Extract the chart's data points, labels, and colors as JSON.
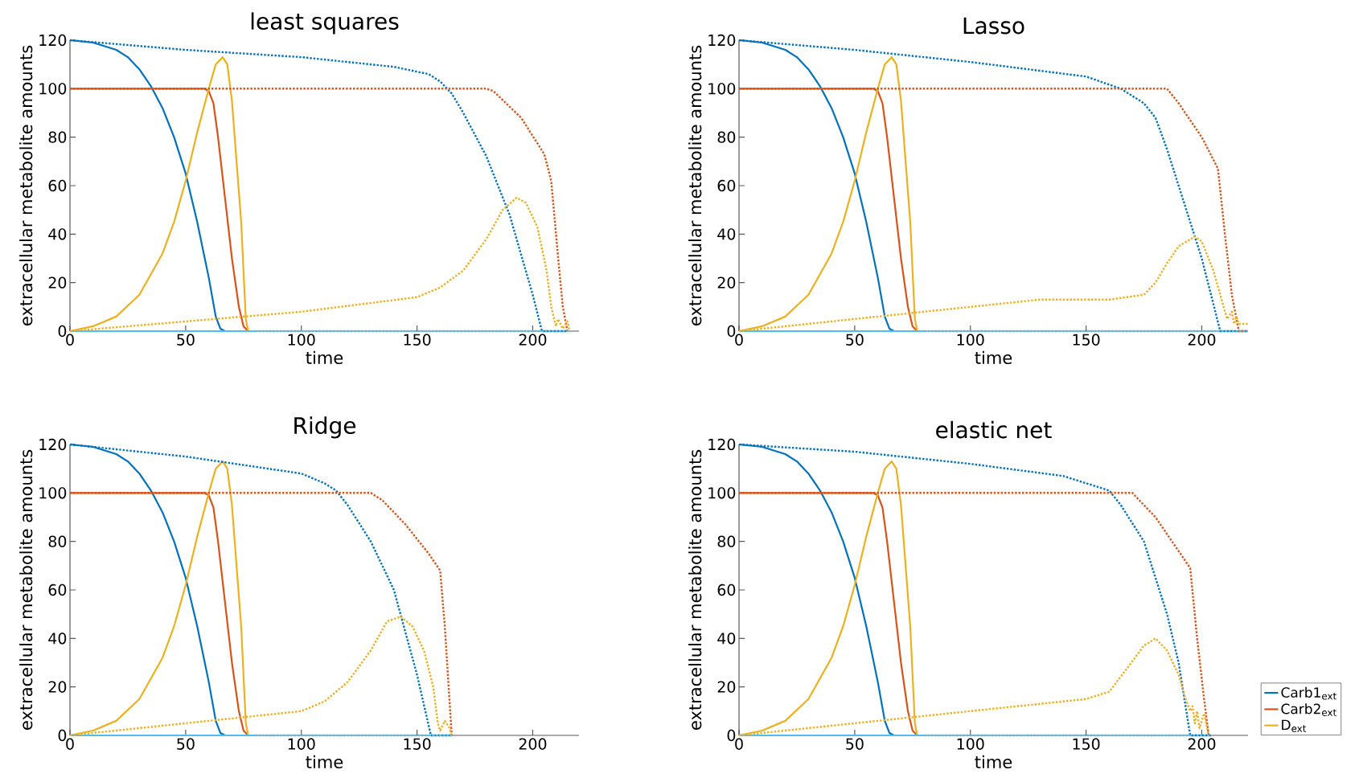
{
  "chart_data": [
    {
      "type": "line",
      "title": "least squares",
      "xlabel": "time",
      "ylabel": "extracellular metabolite amounts",
      "xlim": [
        0,
        220
      ],
      "ylim": [
        0,
        120
      ],
      "xticks": [
        0,
        50,
        100,
        150,
        200
      ],
      "yticks": [
        0,
        20,
        40,
        60,
        80,
        100,
        120
      ],
      "grid": false,
      "legend": false,
      "series": [
        {
          "color": "#0072bd",
          "line_style": "solid",
          "x": [
            0,
            10,
            20,
            25,
            30,
            35,
            40,
            45,
            50,
            55,
            60,
            63,
            65,
            67
          ],
          "values": [
            120,
            119,
            116,
            113,
            108,
            101,
            92,
            80,
            65,
            45,
            22,
            6,
            1,
            0
          ]
        },
        {
          "color": "#d95319",
          "line_style": "solid",
          "x": [
            0,
            58,
            60,
            62,
            64,
            67,
            70,
            73,
            75,
            77
          ],
          "values": [
            100,
            100,
            99,
            94,
            80,
            55,
            30,
            10,
            2,
            0
          ]
        },
        {
          "color": "#edb120",
          "line_style": "solid",
          "x": [
            0,
            10,
            20,
            30,
            40,
            45,
            50,
            55,
            60,
            63,
            66,
            68,
            70,
            72,
            74,
            75,
            76,
            77
          ],
          "values": [
            0,
            2,
            6,
            15,
            32,
            45,
            62,
            82,
            100,
            110,
            113,
            110,
            95,
            70,
            45,
            25,
            5,
            0
          ]
        },
        {
          "color": "#4dbeee",
          "line_style": "solid",
          "x": [
            0,
            80
          ],
          "values": [
            0,
            0
          ]
        },
        {
          "color": "#0072bd",
          "line_style": "dotted",
          "x": [
            0,
            50,
            100,
            140,
            155,
            160,
            165,
            170,
            180,
            190,
            200,
            204,
            215
          ],
          "values": [
            120,
            116,
            113,
            109,
            106,
            103,
            98,
            90,
            72,
            48,
            15,
            0,
            0
          ]
        },
        {
          "color": "#d95319",
          "line_style": "dotted",
          "x": [
            0,
            180,
            183,
            195,
            205,
            208,
            211,
            213,
            215
          ],
          "values": [
            100,
            100,
            99,
            88,
            73,
            62,
            30,
            10,
            0
          ]
        },
        {
          "color": "#edb120",
          "line_style": "dotted",
          "x": [
            0,
            50,
            100,
            150,
            160,
            170,
            180,
            187,
            193,
            197,
            202,
            206,
            208,
            210,
            211,
            213,
            215,
            216
          ],
          "values": [
            0,
            4,
            8,
            14,
            18,
            25,
            38,
            50,
            55,
            53,
            43,
            25,
            10,
            2,
            5,
            1,
            4,
            0
          ]
        },
        {
          "color": "#4dbeee",
          "line_style": "dotted",
          "x": [
            80,
            216
          ],
          "values": [
            0,
            0
          ]
        }
      ]
    },
    {
      "type": "line",
      "title": "Lasso",
      "xlabel": "time",
      "ylabel": "extracellular metabolite amounts",
      "xlim": [
        0,
        220
      ],
      "ylim": [
        0,
        120
      ],
      "xticks": [
        0,
        50,
        100,
        150,
        200
      ],
      "yticks": [
        0,
        20,
        40,
        60,
        80,
        100,
        120
      ],
      "grid": false,
      "legend": false,
      "series": [
        {
          "color": "#0072bd",
          "line_style": "solid",
          "x": [
            0,
            10,
            20,
            25,
            30,
            35,
            40,
            45,
            50,
            55,
            60,
            63,
            65,
            67
          ],
          "values": [
            120,
            119,
            116,
            113,
            108,
            101,
            92,
            80,
            65,
            45,
            22,
            6,
            1,
            0
          ]
        },
        {
          "color": "#d95319",
          "line_style": "solid",
          "x": [
            0,
            58,
            60,
            62,
            64,
            67,
            70,
            73,
            75,
            77
          ],
          "values": [
            100,
            100,
            99,
            94,
            80,
            55,
            30,
            10,
            2,
            0
          ]
        },
        {
          "color": "#edb120",
          "line_style": "solid",
          "x": [
            0,
            10,
            20,
            30,
            40,
            45,
            50,
            55,
            60,
            63,
            66,
            68,
            70,
            72,
            74,
            75,
            76,
            77
          ],
          "values": [
            0,
            2,
            6,
            15,
            32,
            45,
            62,
            82,
            100,
            110,
            113,
            110,
            95,
            70,
            45,
            25,
            5,
            0
          ]
        },
        {
          "color": "#4dbeee",
          "line_style": "solid",
          "x": [
            0,
            80
          ],
          "values": [
            0,
            0
          ]
        },
        {
          "color": "#0072bd",
          "line_style": "dotted",
          "x": [
            0,
            50,
            100,
            150,
            165,
            175,
            180,
            185,
            190,
            200,
            208,
            220
          ],
          "values": [
            120,
            116,
            111,
            105,
            100,
            94,
            88,
            75,
            60,
            30,
            0,
            0
          ]
        },
        {
          "color": "#d95319",
          "line_style": "dotted",
          "x": [
            0,
            185,
            190,
            200,
            207,
            210,
            213,
            216,
            220
          ],
          "values": [
            100,
            100,
            94,
            80,
            67,
            40,
            15,
            0,
            0
          ]
        },
        {
          "color": "#edb120",
          "line_style": "dotted",
          "x": [
            0,
            50,
            100,
            130,
            160,
            175,
            180,
            185,
            190,
            197,
            200,
            205,
            208,
            210,
            211,
            213,
            214,
            215,
            216,
            220
          ],
          "values": [
            0,
            5,
            10,
            13,
            13,
            15,
            20,
            28,
            35,
            39,
            37,
            25,
            15,
            8,
            5,
            8,
            3,
            6,
            3,
            3
          ]
        },
        {
          "color": "#4dbeee",
          "line_style": "dotted",
          "x": [
            80,
            220
          ],
          "values": [
            0,
            0
          ]
        }
      ]
    },
    {
      "type": "line",
      "title": "Ridge",
      "xlabel": "time",
      "ylabel": "extracellular metabolite amounts",
      "xlim": [
        0,
        220
      ],
      "ylim": [
        0,
        120
      ],
      "xticks": [
        0,
        50,
        100,
        150,
        200
      ],
      "yticks": [
        0,
        20,
        40,
        60,
        80,
        100,
        120
      ],
      "grid": false,
      "legend": false,
      "series": [
        {
          "color": "#0072bd",
          "line_style": "solid",
          "x": [
            0,
            10,
            20,
            25,
            30,
            35,
            40,
            45,
            50,
            55,
            60,
            63,
            65,
            67
          ],
          "values": [
            120,
            119,
            116,
            113,
            108,
            101,
            92,
            80,
            65,
            45,
            22,
            6,
            1,
            0
          ]
        },
        {
          "color": "#d95319",
          "line_style": "solid",
          "x": [
            0,
            58,
            60,
            62,
            64,
            67,
            70,
            73,
            75,
            77
          ],
          "values": [
            100,
            100,
            99,
            94,
            80,
            55,
            30,
            10,
            2,
            0
          ]
        },
        {
          "color": "#edb120",
          "line_style": "solid",
          "x": [
            0,
            10,
            20,
            30,
            40,
            45,
            50,
            55,
            60,
            63,
            66,
            68,
            70,
            72,
            74,
            75,
            76,
            77
          ],
          "values": [
            0,
            2,
            6,
            15,
            32,
            45,
            62,
            82,
            100,
            110,
            113,
            110,
            95,
            70,
            45,
            25,
            5,
            0
          ]
        },
        {
          "color": "#4dbeee",
          "line_style": "solid",
          "x": [
            0,
            80
          ],
          "values": [
            0,
            0
          ]
        },
        {
          "color": "#0072bd",
          "line_style": "dotted",
          "x": [
            0,
            50,
            100,
            110,
            115,
            120,
            130,
            140,
            150,
            156,
            165
          ],
          "values": [
            120,
            115,
            108,
            104,
            101,
            95,
            80,
            60,
            25,
            0,
            0
          ]
        },
        {
          "color": "#d95319",
          "line_style": "dotted",
          "x": [
            0,
            130,
            135,
            145,
            155,
            160,
            162,
            164,
            165
          ],
          "values": [
            100,
            100,
            97,
            87,
            75,
            68,
            45,
            15,
            0
          ]
        },
        {
          "color": "#edb120",
          "line_style": "dotted",
          "x": [
            0,
            50,
            100,
            110,
            120,
            130,
            137,
            143,
            148,
            153,
            157,
            159,
            160,
            162,
            164,
            165
          ],
          "values": [
            0,
            5,
            10,
            14,
            22,
            35,
            47,
            49,
            45,
            35,
            20,
            5,
            2,
            6,
            3,
            0
          ]
        },
        {
          "color": "#4dbeee",
          "line_style": "dotted",
          "x": [
            80,
            165
          ],
          "values": [
            0,
            0
          ]
        }
      ]
    },
    {
      "type": "line",
      "title": "elastic net",
      "xlabel": "time",
      "ylabel": "extracellular metabolite amounts",
      "xlim": [
        0,
        220
      ],
      "ylim": [
        0,
        120
      ],
      "xticks": [
        0,
        50,
        100,
        150,
        200
      ],
      "yticks": [
        0,
        20,
        40,
        60,
        80,
        100,
        120
      ],
      "grid": false,
      "legend": "bottom right",
      "series": [
        {
          "name": "Carb1$_{ext}$",
          "color": "#0072bd",
          "line_style": "solid",
          "x": [
            0,
            10,
            20,
            25,
            30,
            35,
            40,
            45,
            50,
            55,
            60,
            63,
            65,
            67
          ],
          "values": [
            120,
            119,
            116,
            113,
            108,
            101,
            92,
            80,
            65,
            45,
            22,
            6,
            1,
            0
          ]
        },
        {
          "name": "Carb2$_{ext}$",
          "color": "#d95319",
          "line_style": "solid",
          "x": [
            0,
            58,
            60,
            62,
            64,
            67,
            70,
            73,
            75,
            77
          ],
          "values": [
            100,
            100,
            99,
            94,
            80,
            55,
            30,
            10,
            2,
            0
          ]
        },
        {
          "name": "D$_{ext}$",
          "color": "#edb120",
          "line_style": "solid",
          "x": [
            0,
            10,
            20,
            30,
            40,
            45,
            50,
            55,
            60,
            63,
            66,
            68,
            70,
            72,
            74,
            75,
            76,
            77
          ],
          "values": [
            0,
            2,
            6,
            15,
            32,
            45,
            62,
            82,
            100,
            110,
            113,
            110,
            95,
            70,
            45,
            25,
            5,
            0
          ]
        },
        {
          "color": "#4dbeee",
          "line_style": "solid",
          "x": [
            0,
            80
          ],
          "values": [
            0,
            0
          ]
        },
        {
          "color": "#0072bd",
          "line_style": "dotted",
          "x": [
            0,
            50,
            100,
            140,
            160,
            165,
            175,
            185,
            190,
            195,
            204
          ],
          "values": [
            120,
            117,
            112,
            107,
            101,
            95,
            80,
            50,
            30,
            0,
            0
          ]
        },
        {
          "color": "#d95319",
          "line_style": "dotted",
          "x": [
            0,
            170,
            180,
            190,
            195,
            198,
            201,
            203
          ],
          "values": [
            100,
            100,
            90,
            76,
            69,
            40,
            15,
            0
          ]
        },
        {
          "color": "#edb120",
          "line_style": "dotted",
          "x": [
            0,
            50,
            100,
            150,
            160,
            168,
            175,
            180,
            185,
            190,
            193,
            195,
            196,
            197,
            198,
            199,
            201,
            203
          ],
          "values": [
            0,
            5,
            10,
            15,
            18,
            28,
            37,
            40,
            35,
            25,
            15,
            10,
            12,
            5,
            10,
            3,
            9,
            0
          ]
        },
        {
          "color": "#4dbeee",
          "line_style": "dotted",
          "x": [
            80,
            204
          ],
          "values": [
            0,
            0
          ]
        }
      ]
    }
  ]
}
